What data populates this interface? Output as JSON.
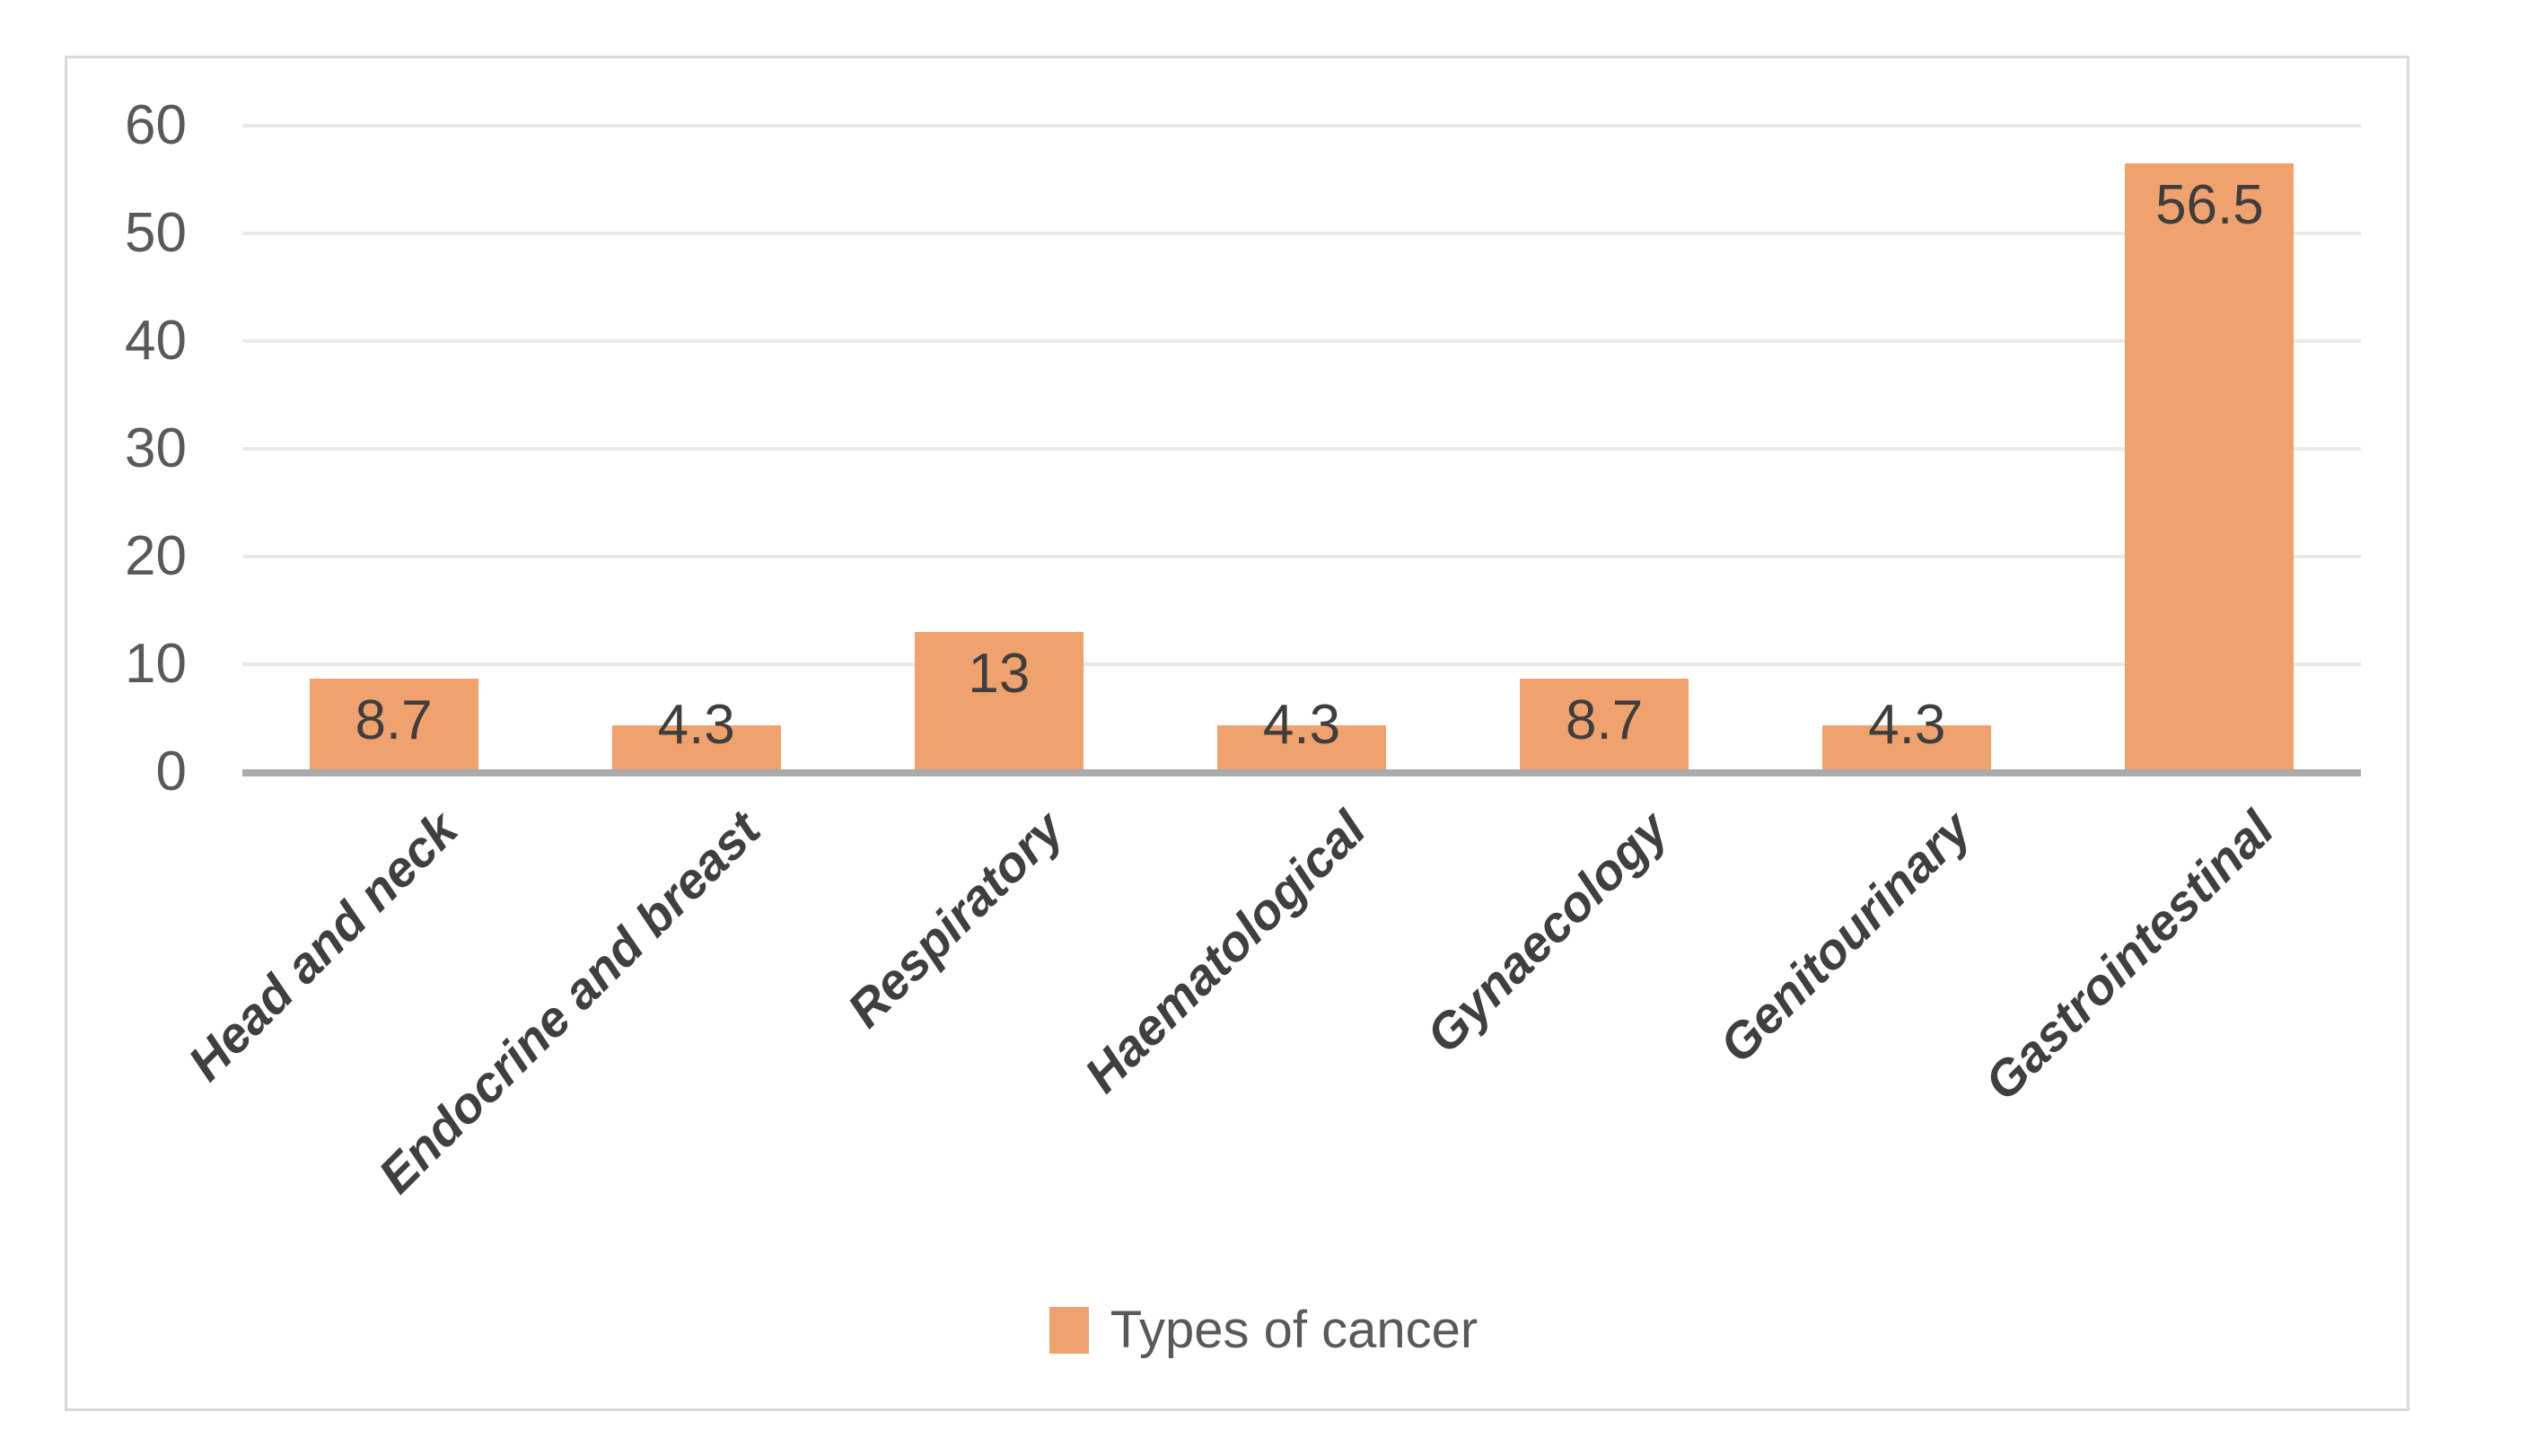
{
  "chart_data": {
    "type": "bar",
    "categories": [
      "Head and neck",
      "Endocrine and breast",
      "Respiratory",
      "Haematological",
      "Gynaecology",
      "Genitourinary",
      "Gastrointestinal"
    ],
    "values": [
      8.7,
      4.3,
      13,
      4.3,
      8.7,
      4.3,
      56.5
    ],
    "title": "",
    "xlabel": "",
    "ylabel": "",
    "ylim": [
      0,
      60
    ],
    "yticks": [
      0,
      10,
      20,
      30,
      40,
      50,
      60
    ],
    "grid": true,
    "data_labels": true,
    "legend": "Types of cancer",
    "legend_position": "bottom",
    "bar_color": "#efa26e",
    "axis_line_color": "#ababab",
    "gridline_color": "#e9e9e9",
    "label_color": "#3e3e3e",
    "tick_label_color": "#595959"
  }
}
